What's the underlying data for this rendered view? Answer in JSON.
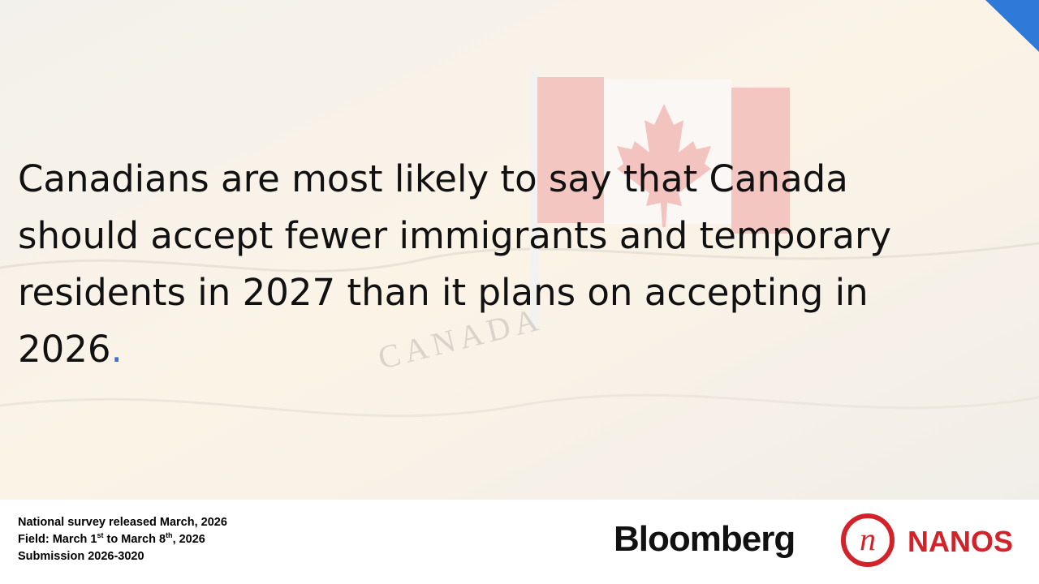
{
  "headline": {
    "text": "Canadians are most likely to say that Canada should accept fewer immigrants and temporary residents in 2027 than it plans on accepting in 2026",
    "end_mark": "."
  },
  "background": {
    "map_label": "CANADA"
  },
  "footer": {
    "release": "National survey released March, 2026",
    "field": [
      "Field: March 1",
      "st",
      " to March 8",
      "th",
      ", 2026"
    ],
    "submission": "Submission 2026-3020"
  },
  "logos": {
    "bloomberg": "Bloomberg",
    "nanos_mark": "n",
    "nanos": "NANOS"
  }
}
